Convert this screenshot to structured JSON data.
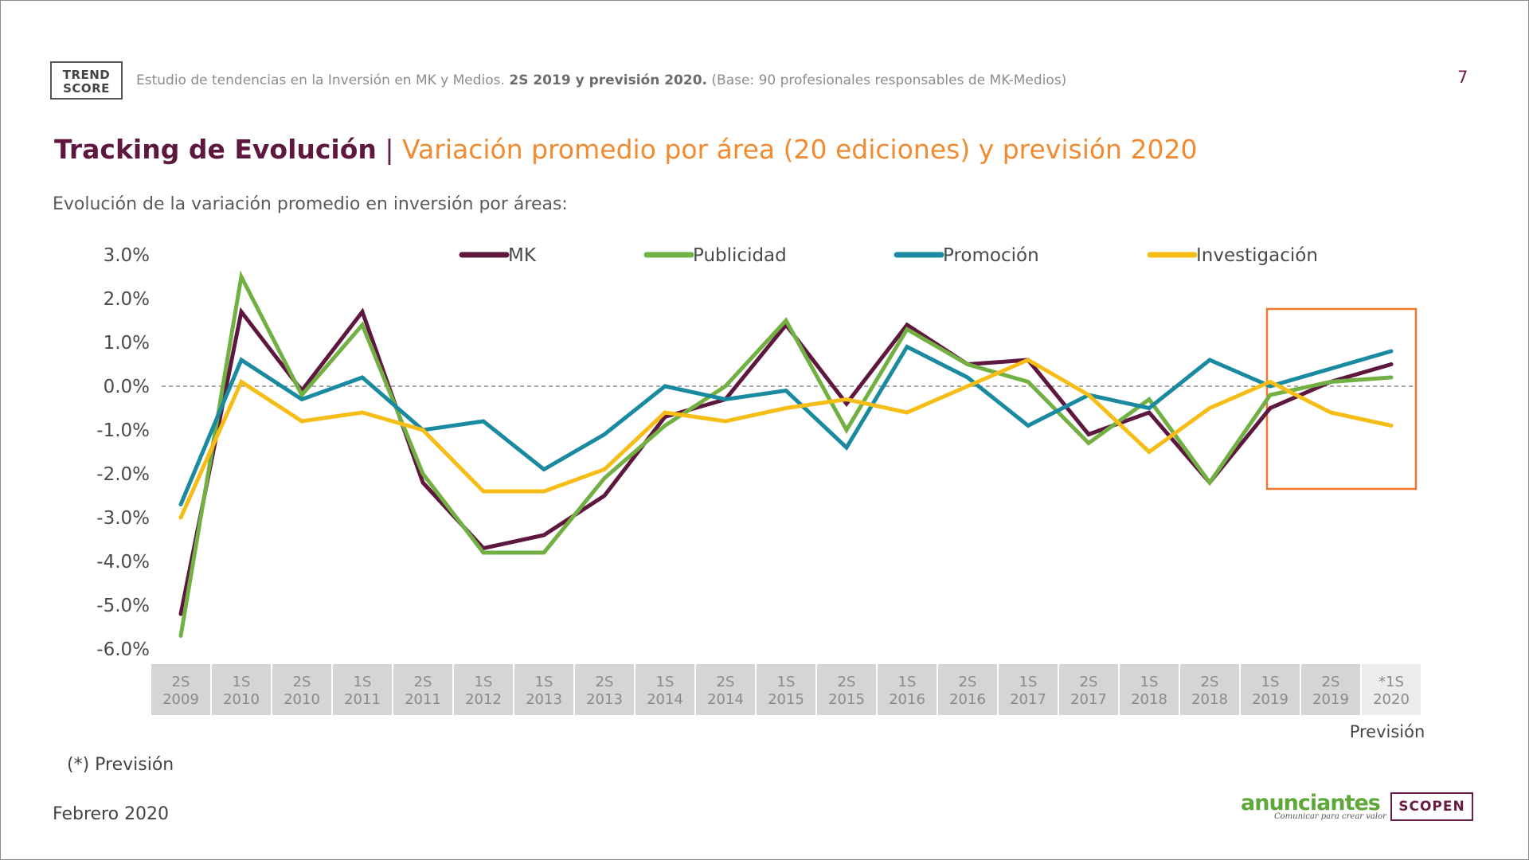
{
  "header": {
    "logo": {
      "line1": "TREND",
      "line2": "SCORE"
    },
    "study_prefix": "Estudio de tendencias en la Inversión en MK y Medios.",
    "study_bold": "2S 2019 y previsión 2020.",
    "study_suffix": "(Base: 90 profesionales responsables de MK-Medios)",
    "page_number": "7"
  },
  "title": {
    "main": "Tracking de Evolución",
    "separator": "|",
    "sub": "Variación promedio por área (20 ediciones) y previsión 2020"
  },
  "subtitle": "Evolución de la variación promedio en inversión por áreas:",
  "chart_data": {
    "type": "line",
    "title": "",
    "xlabel": "",
    "ylabel": "",
    "ylim": [
      -6.0,
      3.0
    ],
    "yticks": [
      "3.0%",
      "2.0%",
      "1.0%",
      "0.0%",
      "-1.0%",
      "-2.0%",
      "-3.0%",
      "-4.0%",
      "-5.0%",
      "-6.0%"
    ],
    "ytick_values": [
      3,
      2,
      1,
      0,
      -1,
      -2,
      -3,
      -4,
      -5,
      -6
    ],
    "categories": [
      [
        "2S",
        "2009"
      ],
      [
        "1S",
        "2010"
      ],
      [
        "2S",
        "2010"
      ],
      [
        "1S",
        "2011"
      ],
      [
        "2S",
        "2011"
      ],
      [
        "1S",
        "2012"
      ],
      [
        "1S",
        "2013"
      ],
      [
        "2S",
        "2013"
      ],
      [
        "1S",
        "2014"
      ],
      [
        "2S",
        "2014"
      ],
      [
        "1S",
        "2015"
      ],
      [
        "2S",
        "2015"
      ],
      [
        "1S",
        "2016"
      ],
      [
        "2S",
        "2016"
      ],
      [
        "1S",
        "2017"
      ],
      [
        "2S",
        "2017"
      ],
      [
        "1S",
        "2018"
      ],
      [
        "2S",
        "2018"
      ],
      [
        "1S",
        "2019"
      ],
      [
        "2S",
        "2019"
      ],
      [
        "*1S",
        "2020"
      ]
    ],
    "forecast_label": "Previsión",
    "forecast_range": [
      "1S 2019",
      "*1S 2020"
    ],
    "zero_line": "dashed",
    "legend_position": "top",
    "series": [
      {
        "name": "MK",
        "color": "#5e1840",
        "values": [
          -5.2,
          1.7,
          -0.1,
          1.7,
          -2.2,
          -3.7,
          -3.4,
          -2.5,
          -0.7,
          -0.3,
          1.4,
          -0.4,
          1.4,
          0.5,
          0.6,
          -1.1,
          -0.6,
          -2.2,
          -0.5,
          0.1,
          0.5
        ]
      },
      {
        "name": "Publicidad",
        "color": "#72b043",
        "values": [
          -5.7,
          2.5,
          -0.2,
          1.4,
          -2.0,
          -3.8,
          -3.8,
          -2.1,
          -0.9,
          0.0,
          1.5,
          -1.0,
          1.3,
          0.5,
          0.1,
          -1.3,
          -0.3,
          -2.2,
          -0.2,
          0.1,
          0.2
        ]
      },
      {
        "name": "Promoción",
        "color": "#1a8aa0",
        "values": [
          -2.7,
          0.6,
          -0.3,
          0.2,
          -1.0,
          -0.8,
          -1.9,
          -1.1,
          0.0,
          -0.3,
          -0.1,
          -1.4,
          0.9,
          0.2,
          -0.9,
          -0.2,
          -0.5,
          0.6,
          0.0,
          0.4,
          0.8
        ]
      },
      {
        "name": "Investigación",
        "color": "#f7bd17",
        "values": [
          -3.0,
          0.1,
          -0.8,
          -0.6,
          -1.0,
          -2.4,
          -2.4,
          -1.9,
          -0.6,
          -0.8,
          -0.5,
          -0.3,
          -0.6,
          0.0,
          0.6,
          -0.2,
          -1.5,
          -0.5,
          0.1,
          -0.6,
          -0.9
        ]
      }
    ],
    "highlight_color": "#ec7a2e"
  },
  "footnote": "(*) Previsión",
  "date": "Febrero 2020",
  "logos": {
    "anunciantes": "anunciantes",
    "anunciantes_tagline": "Comunicar para crear valor",
    "scopen": "SCOPEN"
  },
  "colors": {
    "brand_purple": "#5e1840",
    "accent_orange": "#f28a2f"
  }
}
